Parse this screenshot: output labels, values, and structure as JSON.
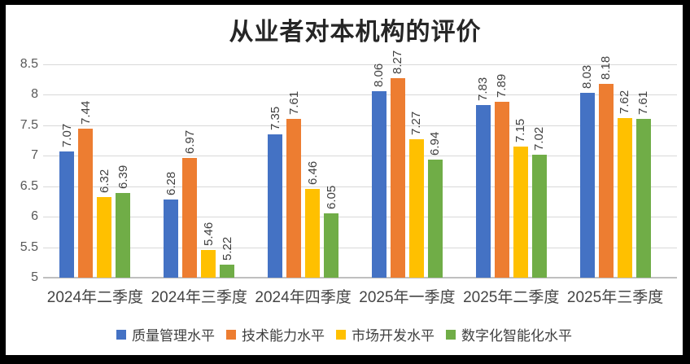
{
  "window": {
    "background_color": "#000000",
    "panel_color": "#ffffff"
  },
  "chart_data": {
    "type": "bar",
    "title": "从业者对本机构的评价",
    "categories": [
      "2024年二季度",
      "2024年三季度",
      "2024年四季度",
      "2025年一季度",
      "2025年二季度",
      "2025年三季度"
    ],
    "series": [
      {
        "name": "质量管理水平",
        "color": "#4472C4",
        "values": [
          7.07,
          6.28,
          7.35,
          8.06,
          7.83,
          8.03
        ]
      },
      {
        "name": "技术能力水平",
        "color": "#ED7D31",
        "values": [
          7.44,
          6.97,
          7.61,
          8.27,
          7.89,
          8.18
        ]
      },
      {
        "name": "市场开发水平",
        "color": "#FFC000",
        "values": [
          6.32,
          5.46,
          6.46,
          7.27,
          7.15,
          7.62
        ]
      },
      {
        "name": "数字化智能化水平",
        "color": "#70AD47",
        "values": [
          6.39,
          5.22,
          6.05,
          6.94,
          7.02,
          7.61
        ]
      }
    ],
    "ylim": [
      5,
      8.5
    ],
    "ytick_step": 0.5,
    "yticks": [
      "5",
      "5.5",
      "6",
      "6.5",
      "7",
      "7.5",
      "8",
      "8.5"
    ],
    "grid": true,
    "legend_position": "bottom",
    "data_labels": "rotated 90° counterclockwise, two decimals",
    "colors": {
      "gridline": "#d9d9d9",
      "axis_line": "#bfbfbf",
      "tick_text": "#595959",
      "data_label_text": "#404040",
      "category_text": "#444444",
      "title_text": "#262626"
    }
  }
}
